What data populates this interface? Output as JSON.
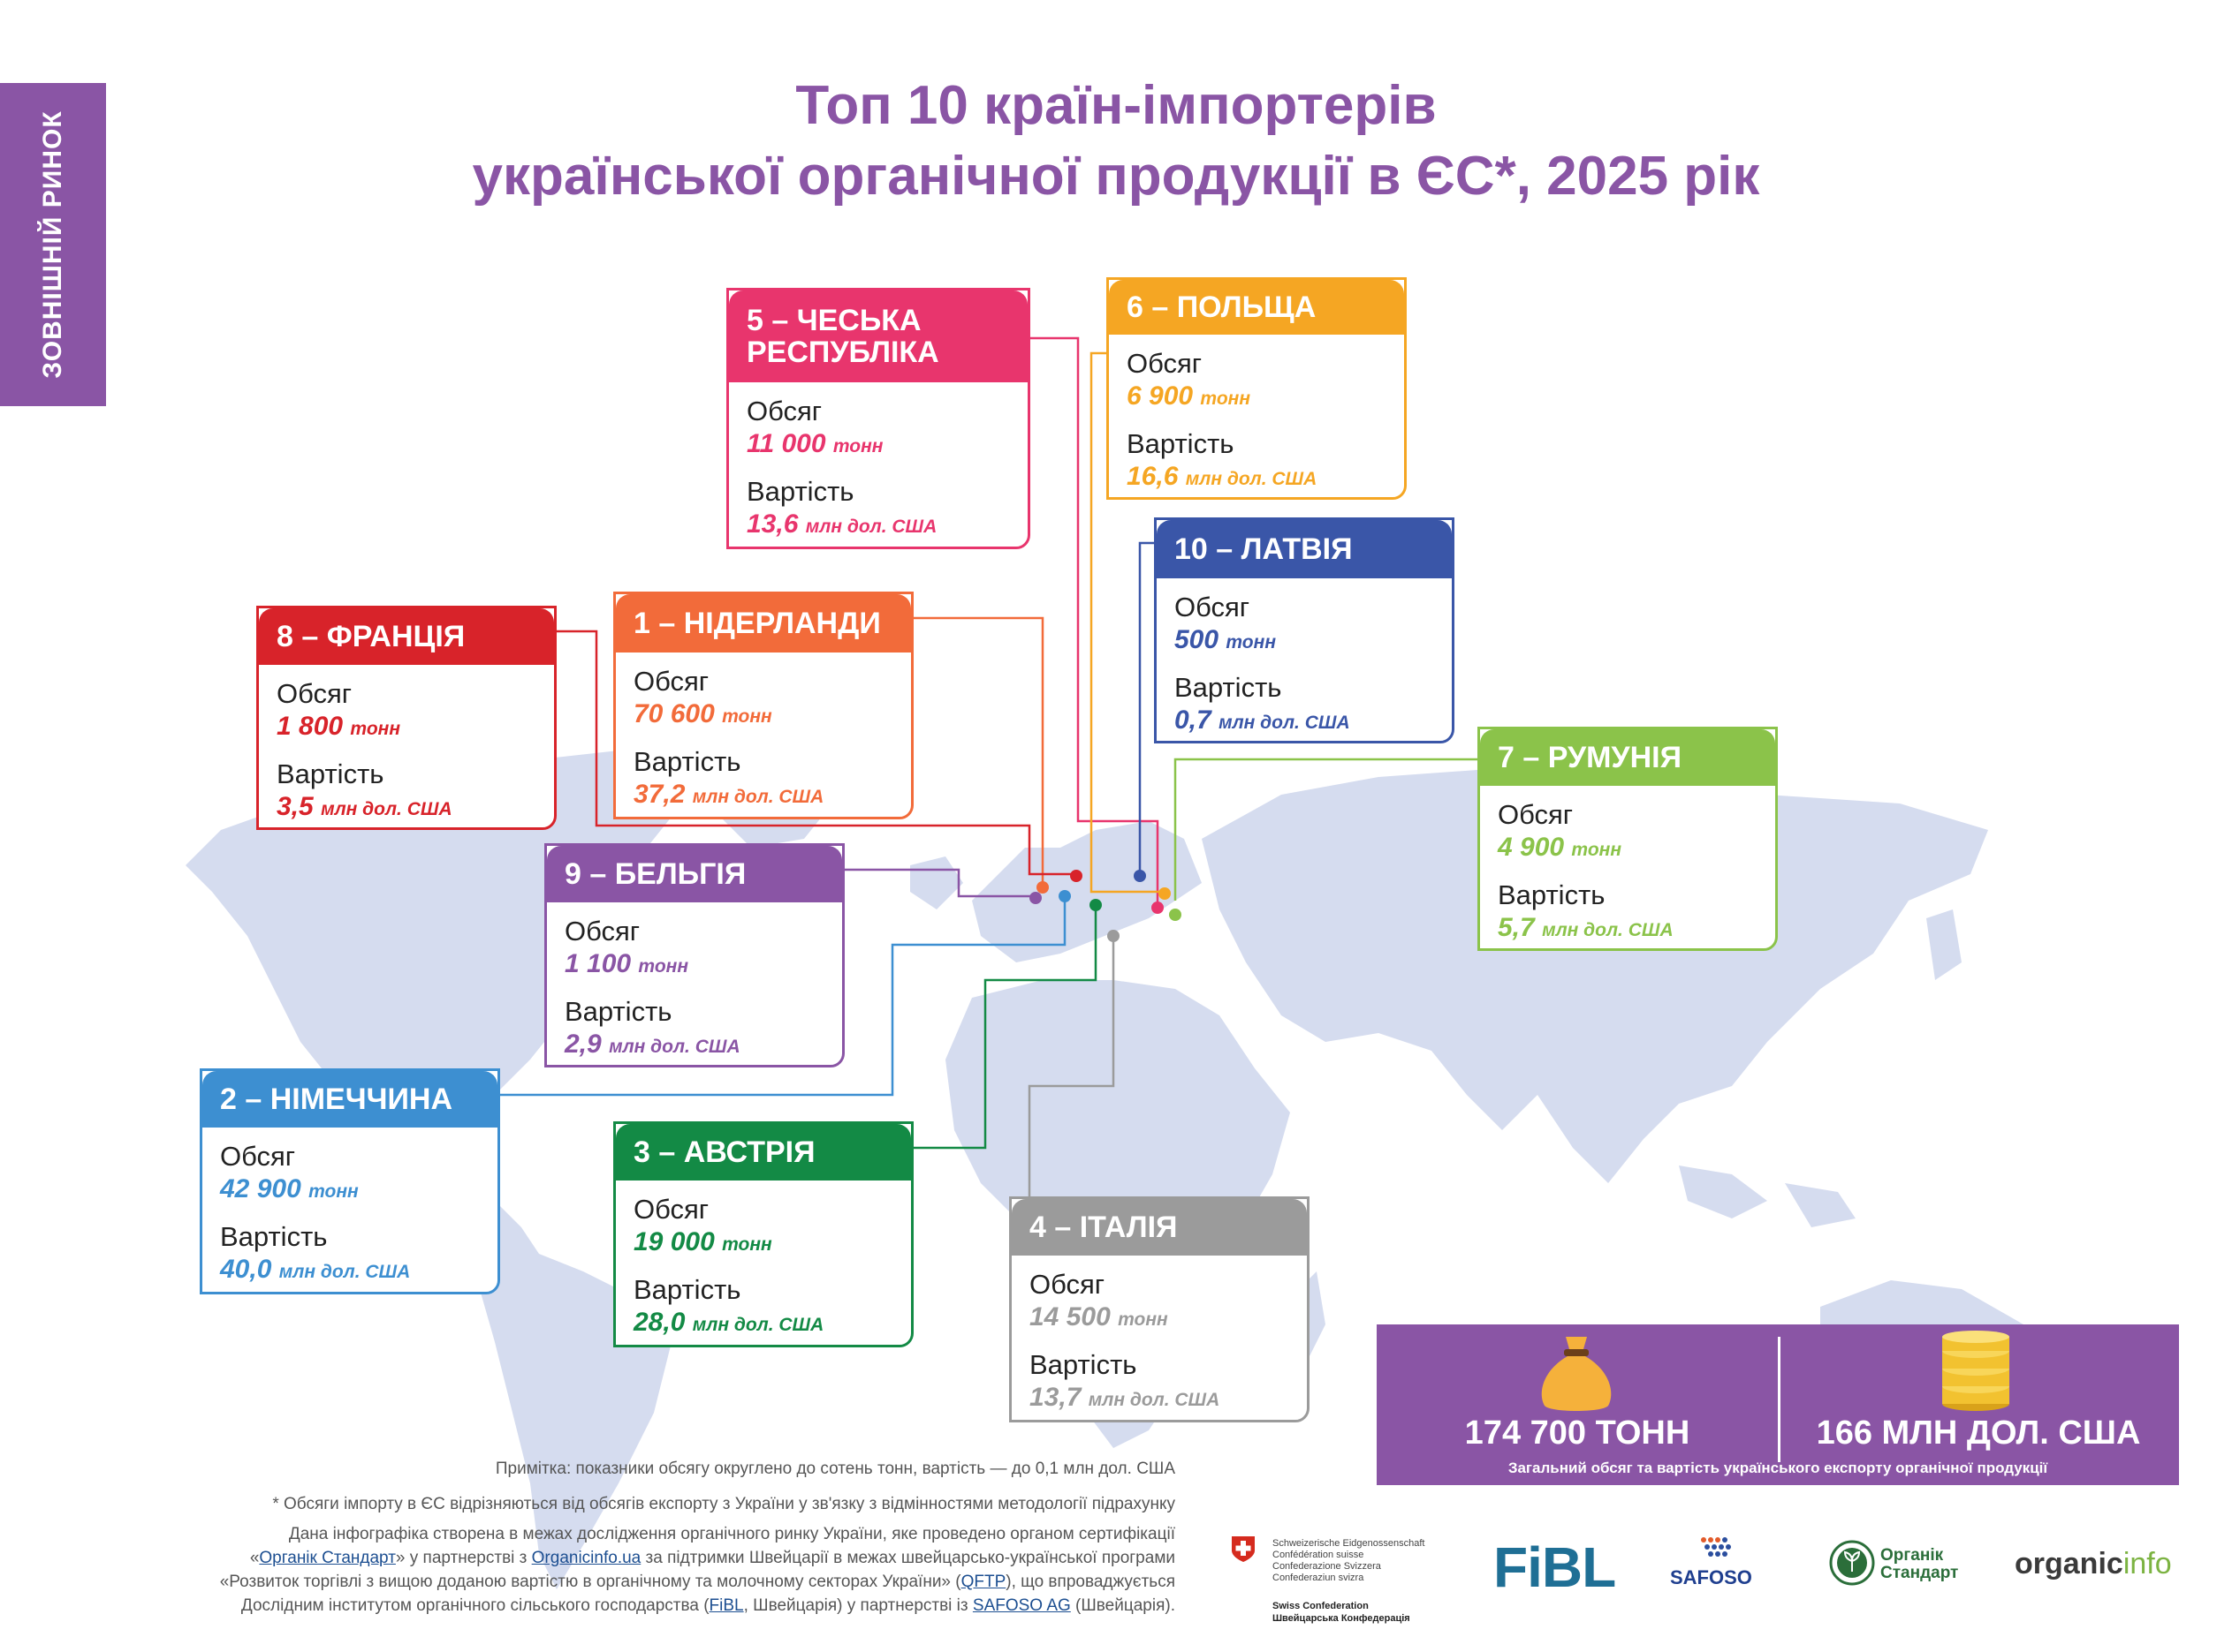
{
  "side_tab": "ЗОВНІШНІЙ РИНОК",
  "title_line1": "Топ 10 країн-імпортерів",
  "title_line2": "української органічної продукції в ЄС*, 2025 рік",
  "labels": {
    "volume": "Обсяг",
    "value": "Вартість"
  },
  "countries": [
    {
      "rank_title": "1 – НІДЕРЛАНДИ",
      "volume": "70 600",
      "volume_unit": "тонн",
      "value": "37,2",
      "value_unit": "млн дол. США",
      "color": "#f26b3a"
    },
    {
      "rank_title": "2 – НІМЕЧЧИНА",
      "volume": "42 900",
      "volume_unit": "тонн",
      "value": "40,0",
      "value_unit": "млн дол. США",
      "color": "#3d8fd1"
    },
    {
      "rank_title": "3 – АВСТРІЯ",
      "volume": "19 000",
      "volume_unit": "тонн",
      "value": "28,0",
      "value_unit": "млн дол. США",
      "color": "#138a45"
    },
    {
      "rank_title": "4 – ІТАЛІЯ",
      "volume": "14 500",
      "volume_unit": "тонн",
      "value": "13,7",
      "value_unit": "млн дол. США",
      "color": "#9b9b9b"
    },
    {
      "rank_title_l1": "5 – ЧЕСЬКА",
      "rank_title_l2": "РЕСПУБЛІКА",
      "volume": "11 000",
      "volume_unit": "тонн",
      "value": "13,6",
      "value_unit": "млн дол. США",
      "color": "#e8356d"
    },
    {
      "rank_title": "6 – ПОЛЬЩА",
      "volume": "6 900",
      "volume_unit": "тонн",
      "value": "16,6",
      "value_unit": "млн дол. США",
      "color": "#f5a623"
    },
    {
      "rank_title": "7 – РУМУНІЯ",
      "volume": "4 900",
      "volume_unit": "тонн",
      "value": "5,7",
      "value_unit": "млн дол. США",
      "color": "#8bc34a"
    },
    {
      "rank_title": "8 – ФРАНЦІЯ",
      "volume": "1 800",
      "volume_unit": "тонн",
      "value": "3,5",
      "value_unit": "млн дол. США",
      "color": "#d8232a"
    },
    {
      "rank_title": "9 – БЕЛЬГІЯ",
      "volume": "1 100",
      "volume_unit": "тонн",
      "value": "2,9",
      "value_unit": "млн дол. США",
      "color": "#8a55a5"
    },
    {
      "rank_title": "10 – ЛАТВІЯ",
      "volume": "500",
      "volume_unit": "тонн",
      "value": "0,7",
      "value_unit": "млн дол. США",
      "color": "#3a56a8"
    }
  ],
  "totals": {
    "volume": "174 700 ТОНН",
    "value": "166 МЛН ДОЛ. США",
    "caption": "Загальний обсяг та вартість українського експорту органічної продукції",
    "bag_icon": "money-bag-icon",
    "coins_icon": "coins-stack-icon"
  },
  "notes": {
    "n1": "Примітка: показники обсягу округлено до сотень тонн, вартість — до 0,1 млн дол. США",
    "n2": "* Обсяги імпорту в ЄС відрізняються від обсягів експорту з України у зв'язку з відмінностями методології підрахунку",
    "n3": "Дана інфографіка створена в межах дослідження органічного ринку України, яке проведено органом сертифікації",
    "n4_a": "«",
    "n4_link1": "Органік Стандарт",
    "n4_b": "» у партнерстві з ",
    "n4_link2": "Organicinfo.ua",
    "n4_c": " за підтримки Швейцарії в межах швейцарсько-української програми",
    "n5_a": "«Розвиток торгівлі з вищою доданою вартістю в органічному та молочному секторах України» (",
    "n5_link": "QFTP",
    "n5_b": "), що впроваджується",
    "n6_a": "Дослідним інститутом органічного сільського господарства (",
    "n6_link1": "FiBL",
    "n6_b": ", Швейцарія) у партнерстві із ",
    "n6_link2": "SAFOSO AG",
    "n6_c": " (Швейцарія)."
  },
  "logos": {
    "swiss_l1": "Schweizerische Eidgenossenschaft",
    "swiss_l2": "Confédération suisse",
    "swiss_l3": "Confederazione Svizzera",
    "swiss_l4": "Confederaziun svizra",
    "swiss_conf_l1": "Swiss Confederation",
    "swiss_conf_l2": "Швейцарська Конфедерація",
    "fibl": "FiBL",
    "safoso": "SAFOSO",
    "orgstd_l1": "Органік",
    "orgstd_l2": "Стандарт",
    "orginfo_a": "organic",
    "orginfo_b": "info"
  }
}
